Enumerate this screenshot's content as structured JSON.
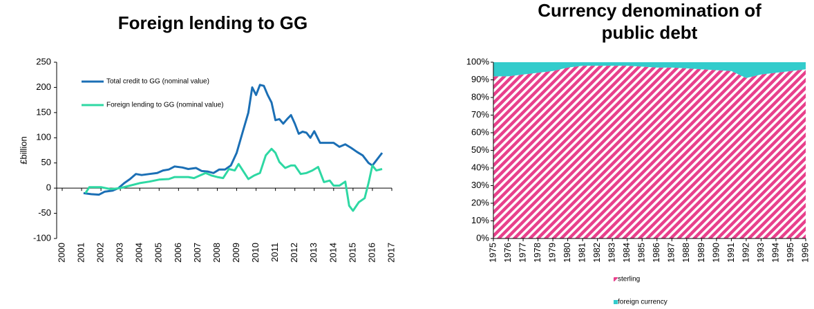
{
  "chart_data": [
    {
      "type": "line",
      "title": "Foreign lending to GG",
      "ylabel": "£billion",
      "xlim": [
        2000,
        2017
      ],
      "xticks": [
        2000,
        2001,
        2002,
        2003,
        2004,
        2005,
        2006,
        2007,
        2008,
        2009,
        2010,
        2011,
        2012,
        2013,
        2014,
        2015,
        2016,
        2017
      ],
      "ylim": [
        -100,
        250
      ],
      "yticks": [
        -100,
        -50,
        0,
        50,
        100,
        150,
        200,
        250
      ],
      "series": [
        {
          "name": "Total credit to GG (nominal value)",
          "color": "#1b6fb5",
          "x": [
            2001.1,
            2001.5,
            2001.9,
            2002.2,
            2002.6,
            2002.9,
            2003.2,
            2003.5,
            2003.8,
            2004.1,
            2004.5,
            2004.9,
            2005.2,
            2005.5,
            2005.8,
            2006.2,
            2006.5,
            2006.9,
            2007.2,
            2007.5,
            2007.8,
            2008.1,
            2008.4,
            2008.7,
            2009.0,
            2009.3,
            2009.6,
            2009.8,
            2010.0,
            2010.2,
            2010.4,
            2010.6,
            2010.8,
            2011.0,
            2011.2,
            2011.4,
            2011.6,
            2011.8,
            2012.0,
            2012.2,
            2012.4,
            2012.6,
            2012.8,
            2013.0,
            2013.3,
            2013.6,
            2014.0,
            2014.3,
            2014.6,
            2014.9,
            2015.2,
            2015.5,
            2015.8,
            2016.0,
            2016.2,
            2016.5
          ],
          "values": [
            -10,
            -12,
            -13,
            -7,
            -5,
            0,
            10,
            18,
            28,
            26,
            28,
            30,
            35,
            37,
            43,
            41,
            38,
            40,
            34,
            33,
            30,
            37,
            37,
            45,
            70,
            110,
            150,
            200,
            185,
            205,
            203,
            185,
            170,
            135,
            137,
            128,
            137,
            145,
            128,
            108,
            112,
            110,
            100,
            113,
            90,
            90,
            90,
            82,
            87,
            80,
            72,
            65,
            50,
            45,
            55,
            70
          ]
        },
        {
          "name": "Foreign lending to GG (nominal value)",
          "color": "#2ed8a3",
          "x": [
            2001.2,
            2001.4,
            2002.0,
            2002.5,
            2003.0,
            2003.5,
            2004.0,
            2004.5,
            2005.0,
            2005.5,
            2005.8,
            2006.5,
            2006.8,
            2007.1,
            2007.4,
            2007.7,
            2008.0,
            2008.3,
            2008.6,
            2008.9,
            2009.1,
            2009.4,
            2009.6,
            2009.9,
            2010.2,
            2010.5,
            2010.8,
            2011.0,
            2011.2,
            2011.5,
            2011.8,
            2012.0,
            2012.3,
            2012.6,
            2012.9,
            2013.2,
            2013.5,
            2013.8,
            2014.0,
            2014.3,
            2014.6,
            2014.8,
            2015.0,
            2015.3,
            2015.6,
            2015.8,
            2016.0,
            2016.2,
            2016.5
          ],
          "values": [
            -10,
            2,
            2,
            -2,
            0,
            5,
            10,
            13,
            17,
            18,
            22,
            22,
            20,
            25,
            30,
            25,
            22,
            20,
            38,
            35,
            48,
            30,
            18,
            25,
            30,
            65,
            78,
            70,
            52,
            40,
            45,
            45,
            28,
            30,
            35,
            42,
            12,
            15,
            5,
            5,
            13,
            -35,
            -45,
            -28,
            -20,
            10,
            45,
            35,
            38
          ]
        }
      ]
    },
    {
      "type": "area",
      "title": "Currency denomination of public debt",
      "categories": [
        "1975",
        "1976",
        "1977",
        "1978",
        "1979",
        "1980",
        "1981",
        "1982",
        "1983",
        "1984",
        "1985",
        "1986",
        "1987",
        "1988",
        "1989",
        "1990",
        "1991",
        "1992",
        "1993",
        "1994",
        "1995",
        "1996"
      ],
      "ylim": [
        0,
        100
      ],
      "yticks": [
        {
          "value": 0,
          "label": "0%"
        },
        {
          "value": 10,
          "label": "10%"
        },
        {
          "value": 20,
          "label": "20%"
        },
        {
          "value": 30,
          "label": "30%"
        },
        {
          "value": 40,
          "label": "40%"
        },
        {
          "value": 50,
          "label": "50%"
        },
        {
          "value": 60,
          "label": "60%"
        },
        {
          "value": 70,
          "label": "70%"
        },
        {
          "value": 80,
          "label": "80%"
        },
        {
          "value": 90,
          "label": "90%"
        },
        {
          "value": 100,
          "label": "100%"
        }
      ],
      "series": [
        {
          "name": "sterling",
          "color": "#e8408c",
          "hatch": true,
          "values": [
            92,
            92,
            93,
            94,
            95,
            97,
            98,
            98,
            98,
            98,
            97.5,
            97,
            97,
            96.5,
            96,
            95.5,
            95,
            91,
            93,
            94,
            95,
            96
          ]
        },
        {
          "name": "foreign currency",
          "color": "#33cccc",
          "values": [
            8,
            8,
            7,
            6,
            5,
            3,
            2,
            2,
            2,
            2,
            2.5,
            3,
            3,
            3.5,
            4,
            4.5,
            5,
            9,
            7,
            6,
            5,
            4
          ]
        }
      ]
    }
  ]
}
